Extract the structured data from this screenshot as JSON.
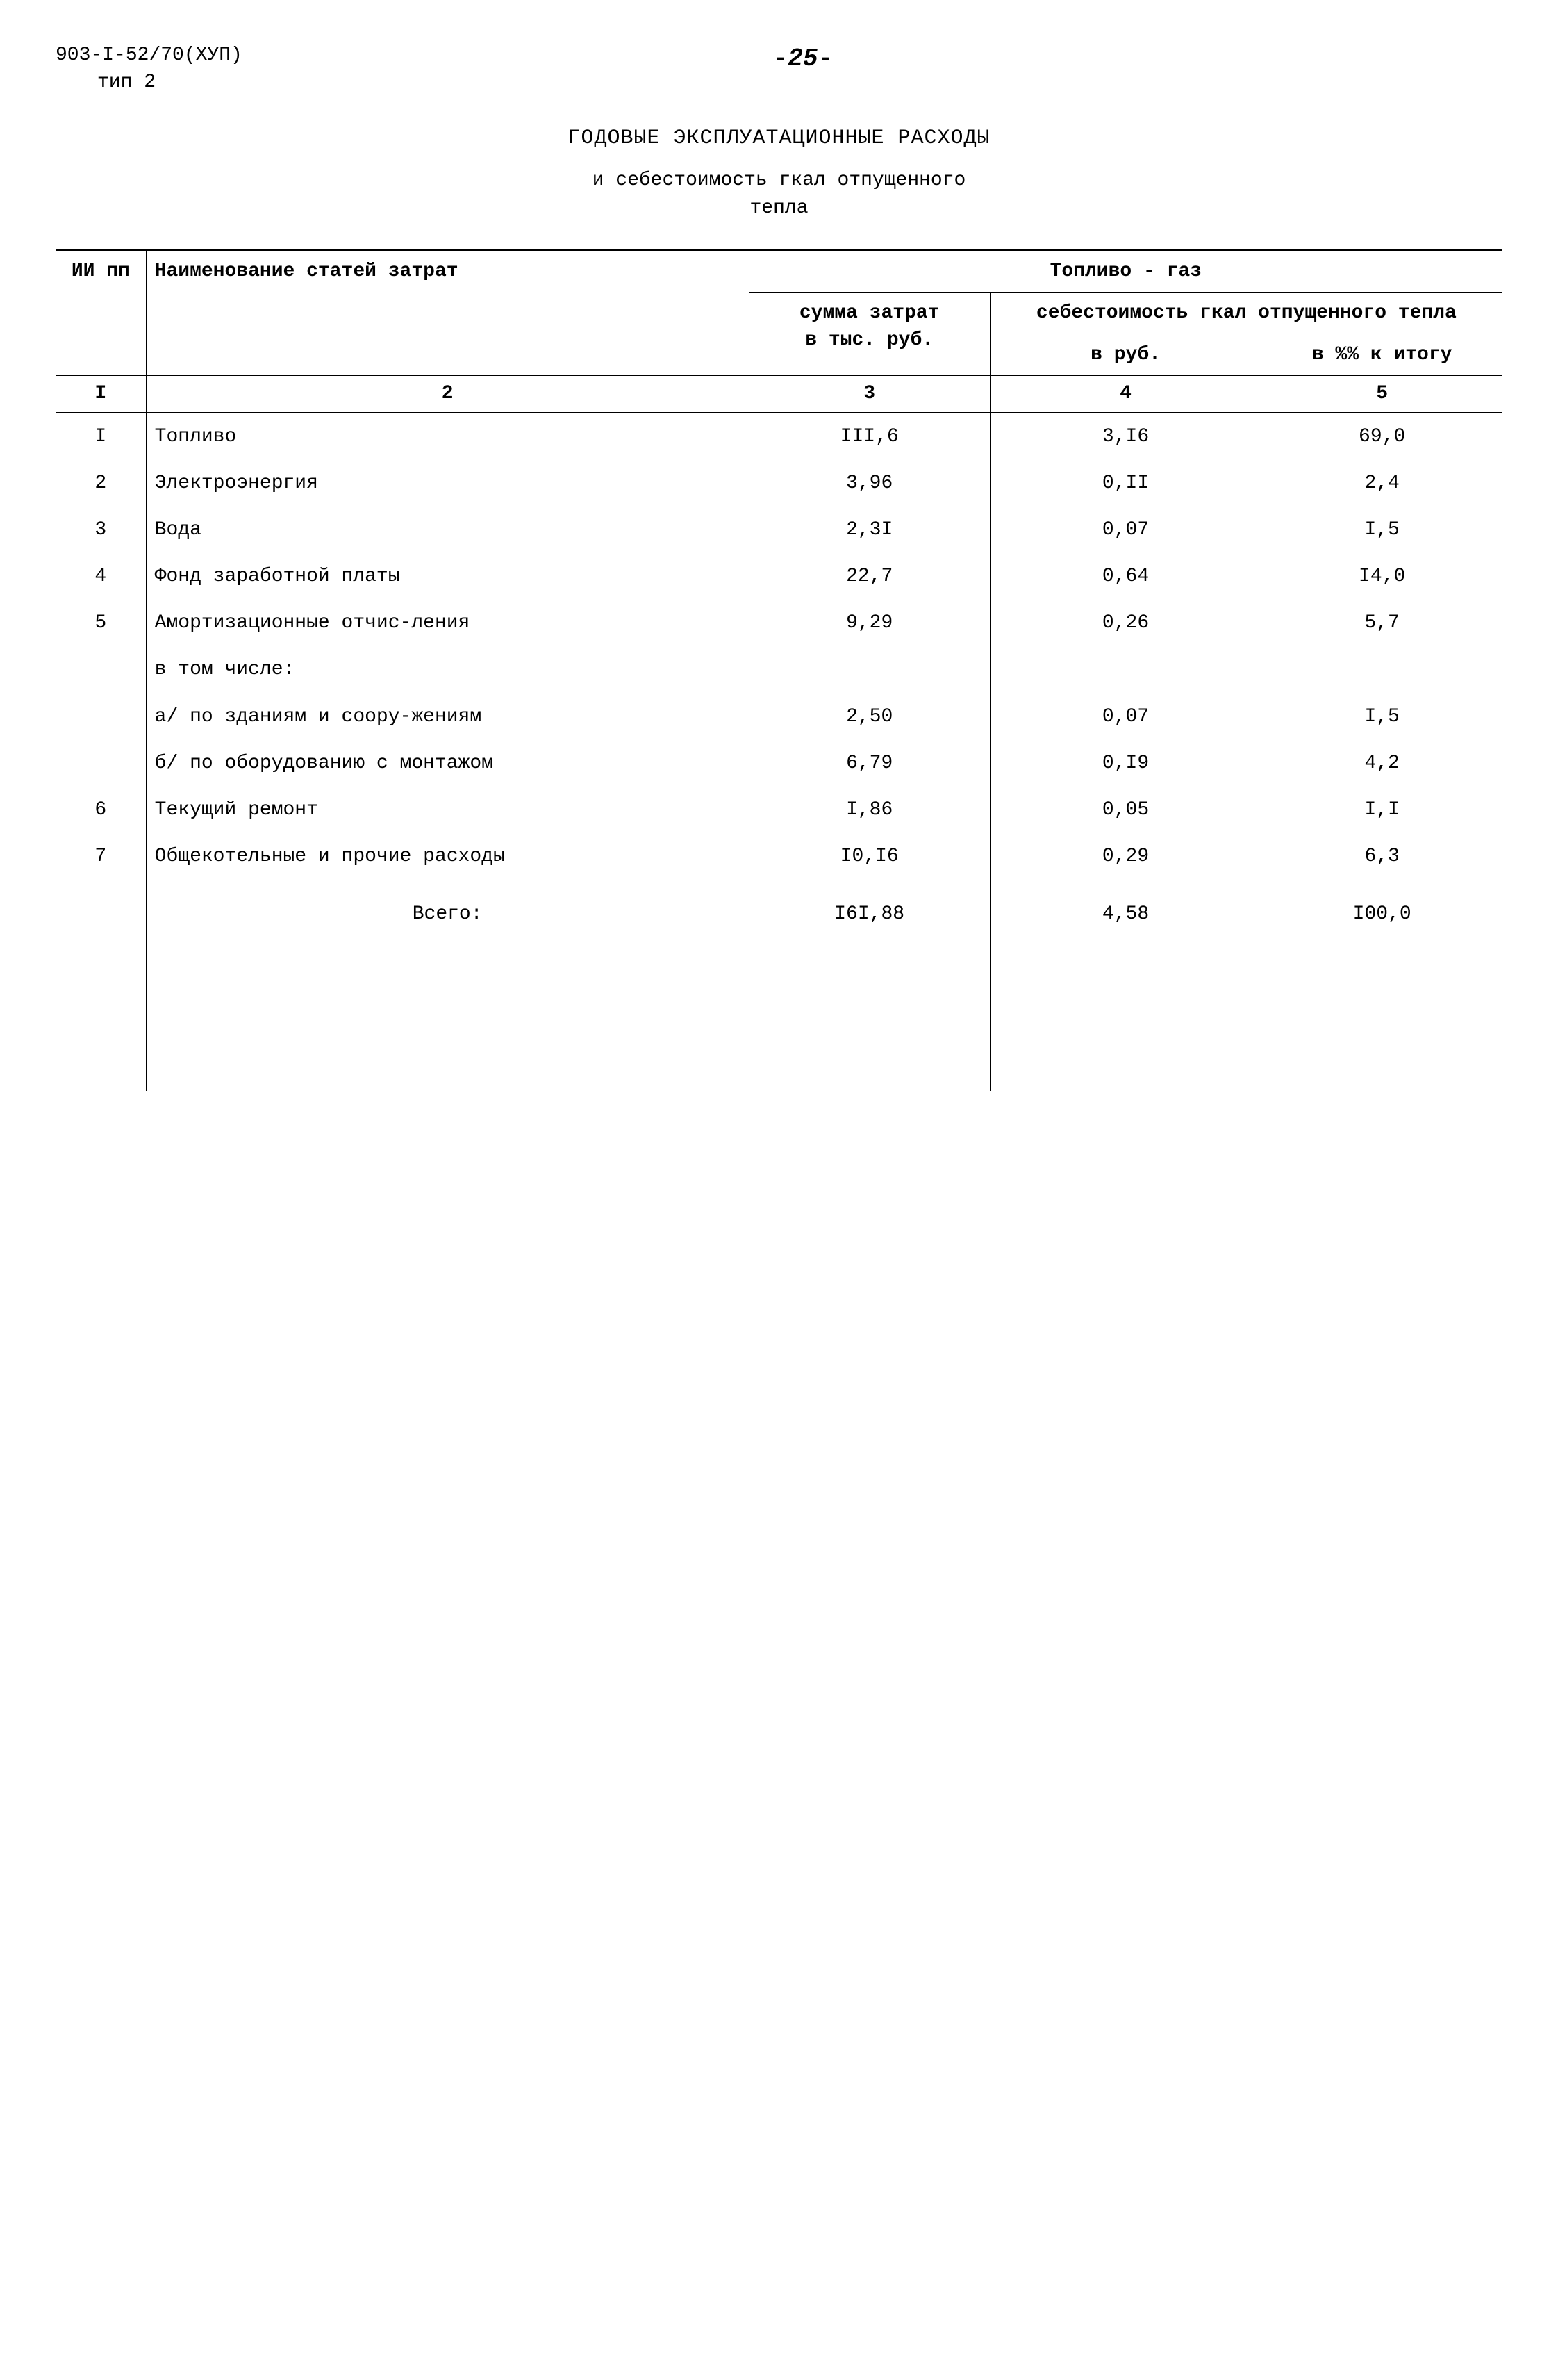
{
  "header": {
    "doc_code_line1": "903-I-52/70(ХУП)",
    "doc_code_line2": "тип 2",
    "page_number": "-25-"
  },
  "title": "ГОДОВЫЕ ЭКСПЛУАТАЦИОННЫЕ РАСХОДЫ",
  "subtitle_line1": "и себестоимость гкал отпущенного",
  "subtitle_line2": "тепла",
  "table": {
    "headers": {
      "col1": "ИИ пп",
      "col2": "Наименование статей затрат",
      "fuel_group": "Топливо - газ",
      "col3_line1": "сумма затрат",
      "col3_line2": "в тыс. руб.",
      "cost_group": "себестоимость гкал отпущенного тепла",
      "col4": "в руб.",
      "col5": "в %% к итогу"
    },
    "number_row": [
      "I",
      "2",
      "3",
      "4",
      "5"
    ],
    "rows": [
      {
        "num": "I",
        "name": "Топливо",
        "sum": "III,6",
        "rub": "3,I6",
        "pct": "69,0"
      },
      {
        "num": "2",
        "name": "Электроэнергия",
        "sum": "3,96",
        "rub": "0,II",
        "pct": "2,4"
      },
      {
        "num": "3",
        "name": "Вода",
        "sum": "2,3I",
        "rub": "0,07",
        "pct": "I,5"
      },
      {
        "num": "4",
        "name": "Фонд заработной платы",
        "sum": "22,7",
        "rub": "0,64",
        "pct": "I4,0"
      },
      {
        "num": "5",
        "name": "Амортизационные отчис-ления",
        "sum": "9,29",
        "rub": "0,26",
        "pct": "5,7"
      },
      {
        "num": "",
        "name": "в том числе:",
        "sum": "",
        "rub": "",
        "pct": ""
      },
      {
        "num": "",
        "name": "а/ по зданиям и соору-жениям",
        "sum": "2,50",
        "rub": "0,07",
        "pct": "I,5",
        "sub": true
      },
      {
        "num": "",
        "name": "б/ по оборудованию с монтажом",
        "sum": "6,79",
        "rub": "0,I9",
        "pct": "4,2",
        "sub": true
      },
      {
        "num": "6",
        "name": "Текущий ремонт",
        "sum": "I,86",
        "rub": "0,05",
        "pct": "I,I"
      },
      {
        "num": "7",
        "name": "Общекотельные и прочие расходы",
        "sum": "I0,I6",
        "rub": "0,29",
        "pct": "6,3"
      }
    ],
    "total": {
      "label": "Всего:",
      "sum": "I6I,88",
      "rub": "4,58",
      "pct": "I00,0"
    }
  }
}
